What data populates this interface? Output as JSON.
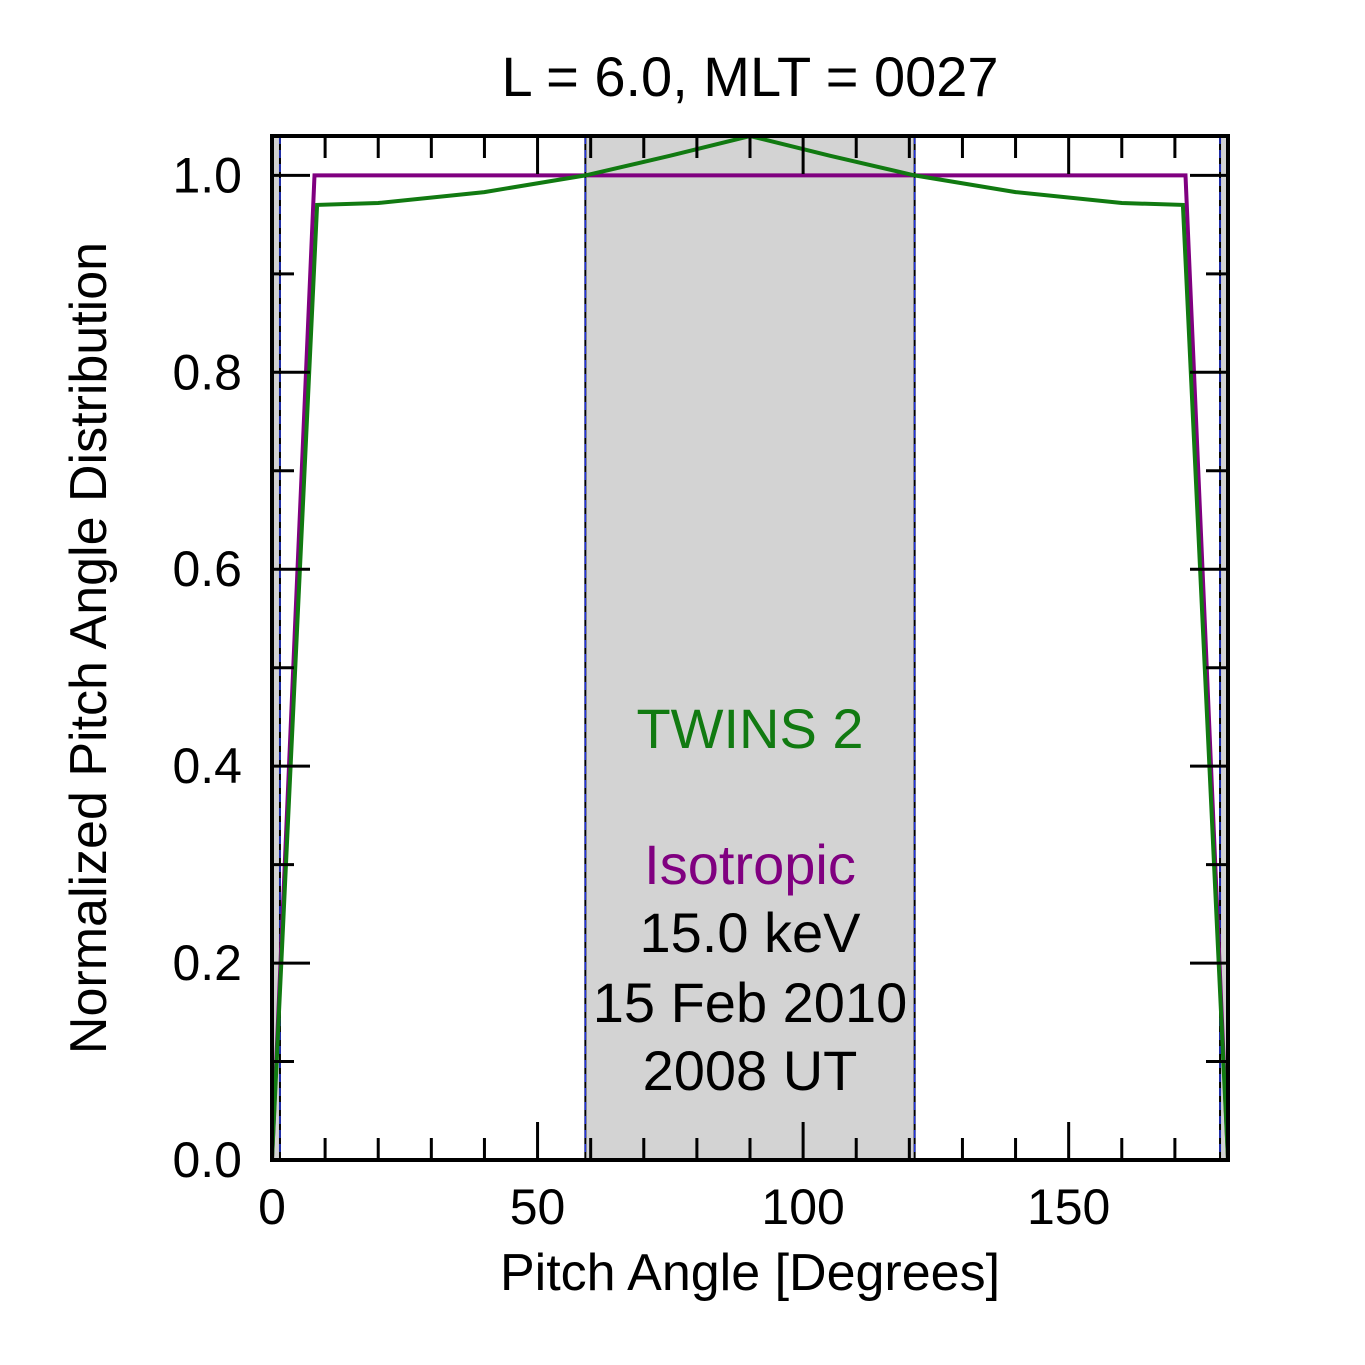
{
  "chart_data": {
    "type": "line",
    "title": "L =  6.0, MLT = 0027",
    "xlabel": "Pitch Angle [Degrees]",
    "ylabel": "Normalized Pitch Angle Distribution",
    "xlim": [
      0,
      180
    ],
    "ylim": [
      0,
      1.04
    ],
    "xticks": [
      0,
      50,
      100,
      150
    ],
    "xtick_labels": [
      "0",
      "50",
      "100",
      "150"
    ],
    "yticks": [
      0.0,
      0.2,
      0.4,
      0.6,
      0.8,
      1.0
    ],
    "ytick_labels": [
      "0.0",
      "0.2",
      "0.4",
      "0.6",
      "0.8",
      "1.0"
    ],
    "grid": false,
    "shaded_regions": [
      {
        "x0": 0,
        "x1": 1.5,
        "color": "#d3d3d3"
      },
      {
        "x0": 59,
        "x1": 121,
        "color": "#d3d3d3"
      },
      {
        "x0": 178.5,
        "x1": 180,
        "color": "#d3d3d3"
      }
    ],
    "vertical_lines": [
      1.5,
      59,
      121,
      178.5
    ],
    "series": [
      {
        "name": "TWINS 2",
        "color": "#117a11",
        "x": [
          0,
          8.5,
          20,
          40,
          59,
          75,
          90,
          105,
          121,
          140,
          160,
          171.5,
          180
        ],
        "y": [
          0.0,
          0.97,
          0.972,
          0.983,
          1.0,
          1.02,
          1.04,
          1.02,
          1.0,
          0.983,
          0.972,
          0.97,
          0.0
        ]
      },
      {
        "name": "Isotropic",
        "color": "#800080",
        "x": [
          0,
          8,
          172,
          180
        ],
        "y": [
          0.0,
          1.0,
          1.0,
          0.0
        ]
      }
    ],
    "annotations": {
      "twins": "TWINS 2",
      "isotropic": "Isotropic",
      "energy": "15.0 keV",
      "date": "15 Feb 2010",
      "time": "2008 UT"
    }
  }
}
